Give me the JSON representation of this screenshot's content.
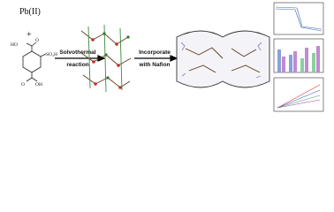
{
  "reactants": {
    "metal": "Pb(II)",
    "plus": "+",
    "ligand_labels": [
      "HO",
      "SO₃H",
      "O",
      "O",
      "OH"
    ]
  },
  "steps": [
    {
      "lines": [
        "Solvothermal",
        "reaction"
      ]
    },
    {
      "lines": [
        "Incorporate",
        "with Nafion"
      ]
    }
  ]
}
